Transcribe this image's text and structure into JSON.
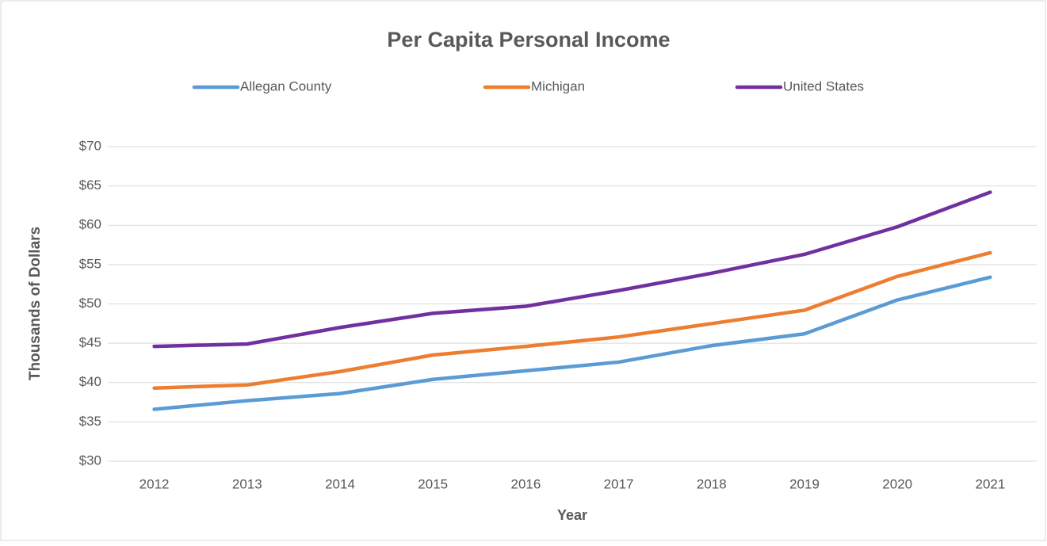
{
  "chart_data": {
    "type": "line",
    "title": "Per Capita Personal Income",
    "x_label": "Year",
    "y_label": "Thousands of Dollars",
    "categories": [
      "2012",
      "2013",
      "2014",
      "2015",
      "2016",
      "2017",
      "2018",
      "2019",
      "2020",
      "2021"
    ],
    "series": [
      {
        "name": "Allegan County",
        "color": "#5b9bd5",
        "values": [
          36.6,
          37.7,
          38.6,
          40.4,
          41.5,
          42.6,
          44.7,
          46.2,
          50.5,
          53.4
        ]
      },
      {
        "name": "Michigan",
        "color": "#ed7d31",
        "values": [
          39.3,
          39.7,
          41.4,
          43.5,
          44.6,
          45.8,
          47.5,
          49.2,
          53.5,
          56.5
        ]
      },
      {
        "name": "United States",
        "color": "#7030a0",
        "values": [
          44.6,
          44.9,
          47.0,
          48.8,
          49.7,
          51.7,
          53.9,
          56.3,
          59.8,
          64.2
        ]
      }
    ],
    "ylim": [
      30,
      70
    ],
    "yticks": [
      {
        "value": 30,
        "label": "$30"
      },
      {
        "value": 35,
        "label": "$35"
      },
      {
        "value": 40,
        "label": "$40"
      },
      {
        "value": 45,
        "label": "$45"
      },
      {
        "value": 50,
        "label": "$50"
      },
      {
        "value": 55,
        "label": "$55"
      },
      {
        "value": 60,
        "label": "$60"
      },
      {
        "value": 65,
        "label": "$65"
      },
      {
        "value": 70,
        "label": "$70"
      }
    ],
    "grid": true,
    "legend": "top"
  }
}
